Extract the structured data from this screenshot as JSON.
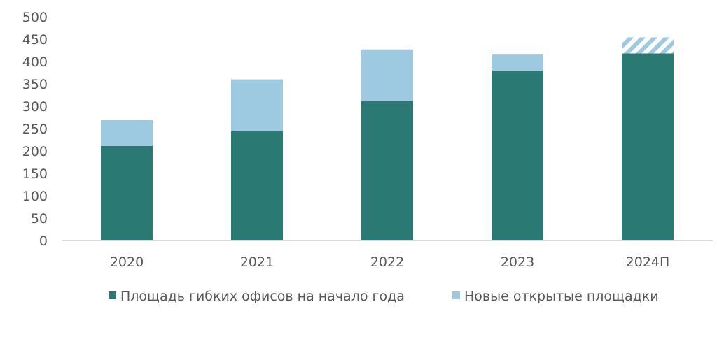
{
  "chart_data": {
    "type": "bar",
    "stacked": true,
    "title": "",
    "xlabel": "",
    "ylabel": "",
    "categories": [
      "2020",
      "2021",
      "2022",
      "2023",
      "2024П"
    ],
    "ylim": [
      0,
      500
    ],
    "yticks": [
      0,
      50,
      100,
      150,
      200,
      250,
      300,
      350,
      400,
      450,
      500
    ],
    "grid": false,
    "legend_position": "bottom",
    "series": [
      {
        "name": "Площадь гибких офисов на начало года",
        "values": [
          211,
          244,
          311,
          380,
          418
        ],
        "color": "#2a7a73",
        "pattern": [
          "solid",
          "solid",
          "solid",
          "solid",
          "solid"
        ]
      },
      {
        "name": "Новые открытые площадки",
        "values": [
          58,
          116,
          116,
          37,
          36
        ],
        "color": "#9ecae1",
        "pattern": [
          "solid",
          "solid",
          "solid",
          "solid",
          "hatched"
        ]
      }
    ]
  }
}
